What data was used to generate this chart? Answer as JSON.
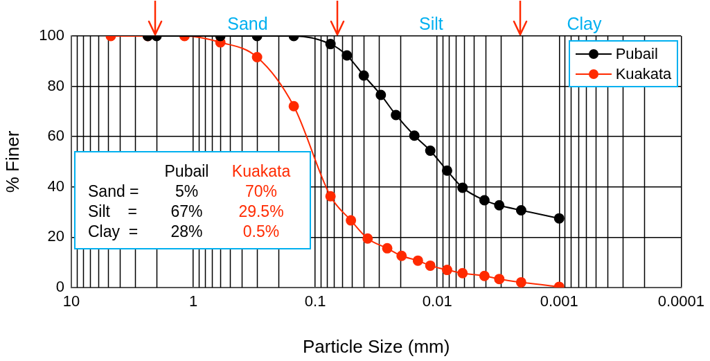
{
  "chart_data": {
    "type": "line",
    "xlabel": "Particle Size (mm)",
    "ylabel": "% Finer",
    "log": "x",
    "xlim": [
      10,
      0.0001
    ],
    "xticks": [
      10,
      1,
      0.1,
      0.01,
      0.001,
      0.0001
    ],
    "ylim": [
      0,
      100
    ],
    "yticks": [
      0,
      20,
      40,
      60,
      80,
      100
    ],
    "grid": true,
    "legend": "top right",
    "marker": "circle",
    "line_style": "solid",
    "series": [
      {
        "name": "Pubail",
        "color": "#000000",
        "x": [
          2.36,
          2,
          0.6,
          0.3,
          0.15,
          0.075,
          0.055,
          0.04,
          0.029,
          0.0218,
          0.0154,
          0.0114,
          0.0083,
          0.0062,
          0.0041,
          0.0031,
          0.00205,
          0.001
        ],
        "values": [
          100,
          100,
          100,
          100,
          100,
          96.8,
          92.3,
          84.3,
          76.6,
          68.6,
          60.4,
          54.4,
          46.5,
          39.7,
          34.7,
          32.7,
          30.7,
          27.5
        ]
      },
      {
        "name": "Kuakata",
        "color": "#ff2a00",
        "x": [
          4.75,
          2.36,
          1.18,
          0.6,
          0.3,
          0.15,
          0.075,
          0.051,
          0.0372,
          0.0257,
          0.0196,
          0.0144,
          0.0114,
          0.0083,
          0.0062,
          0.0041,
          0.0031,
          0.00205,
          0.001
        ],
        "values": [
          100,
          100,
          100,
          97.5,
          91.6,
          72.1,
          36.3,
          26.7,
          19.5,
          15.6,
          12.6,
          10.7,
          8.7,
          7,
          5.7,
          4.6,
          3.4,
          2.1,
          0.3
        ]
      }
    ],
    "annotations": [
      "Sand",
      "Silt",
      "Clay",
      "Pubail",
      "Kuakata",
      "Sand =",
      "5%",
      "70%",
      "Silt    =",
      "67%",
      "29.5%",
      "Clay  =",
      "28%",
      "0.5%"
    ]
  }
}
